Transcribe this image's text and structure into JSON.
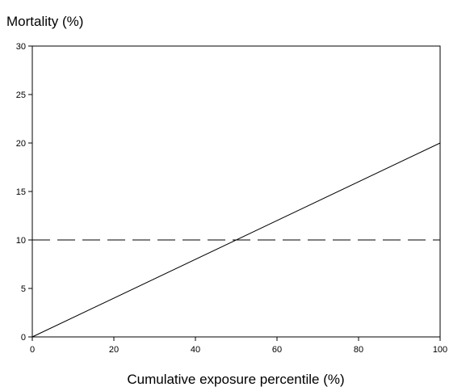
{
  "chart_data": {
    "type": "line",
    "title": "",
    "xlabel": "Cumulative exposure percentile (%)",
    "ylabel": "Mortality (%)",
    "xlim": [
      0,
      100
    ],
    "ylim": [
      0,
      30
    ],
    "xticks": [
      0,
      20,
      40,
      60,
      80,
      100
    ],
    "yticks": [
      0,
      5,
      10,
      15,
      20,
      25,
      30
    ],
    "grid": false,
    "legend": "none",
    "series": [
      {
        "style": "solid",
        "color": "#000000",
        "x": [
          0,
          100
        ],
        "y": [
          0,
          20
        ]
      },
      {
        "style": "dashed",
        "color": "#000000",
        "x": [
          0,
          100
        ],
        "y": [
          10,
          10
        ]
      }
    ]
  }
}
